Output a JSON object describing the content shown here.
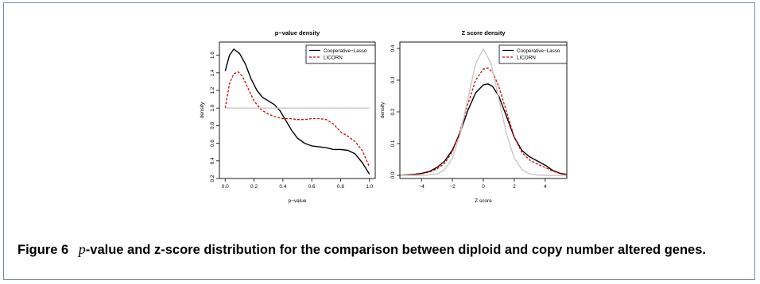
{
  "figure": {
    "caption_label": "Figure 6",
    "caption_symbol": "p",
    "caption_text": "-value and z-score distribution for the comparison between diploid and copy number altered genes."
  },
  "chart_data": [
    {
      "type": "line",
      "title": "p−value density",
      "xlabel": "p−value",
      "ylabel": "density",
      "xlim": [
        -0.04,
        1.04
      ],
      "ylim": [
        0.2,
        1.75
      ],
      "xticks": [
        0.0,
        0.2,
        0.4,
        0.6,
        0.8,
        1.0
      ],
      "xtick_labels": [
        "0.0",
        "0.2",
        "0.4",
        "0.6",
        "0.8",
        "1.0"
      ],
      "yticks": [
        0.2,
        0.4,
        0.6,
        0.8,
        1.0,
        1.2,
        1.4,
        1.6
      ],
      "ytick_labels": [
        "0.2",
        "0.4",
        "0.6",
        "0.8",
        "1.0",
        "1.2",
        "1.4",
        "1.6"
      ],
      "legend_position": "top-right",
      "grid": false,
      "series": [
        {
          "name": "Cooperative−Lasso",
          "color": "#000000",
          "dash": "solid",
          "x": [
            0.0,
            0.03,
            0.06,
            0.1,
            0.14,
            0.18,
            0.22,
            0.26,
            0.3,
            0.34,
            0.38,
            0.42,
            0.46,
            0.5,
            0.55,
            0.6,
            0.65,
            0.7,
            0.75,
            0.8,
            0.85,
            0.9,
            0.95,
            1.0
          ],
          "y": [
            1.42,
            1.6,
            1.67,
            1.62,
            1.5,
            1.33,
            1.2,
            1.12,
            1.08,
            1.04,
            0.97,
            0.86,
            0.75,
            0.66,
            0.6,
            0.57,
            0.56,
            0.55,
            0.53,
            0.53,
            0.52,
            0.48,
            0.38,
            0.25
          ]
        },
        {
          "name": "LICORN",
          "color": "#dd0000",
          "dash": "dashed",
          "x": [
            0.0,
            0.03,
            0.06,
            0.09,
            0.12,
            0.16,
            0.2,
            0.25,
            0.3,
            0.35,
            0.4,
            0.45,
            0.5,
            0.55,
            0.6,
            0.65,
            0.7,
            0.75,
            0.8,
            0.85,
            0.9,
            0.95,
            1.0
          ],
          "y": [
            1.0,
            1.28,
            1.39,
            1.41,
            1.36,
            1.22,
            1.08,
            0.98,
            0.93,
            0.9,
            0.88,
            0.88,
            0.87,
            0.87,
            0.88,
            0.88,
            0.87,
            0.82,
            0.73,
            0.68,
            0.62,
            0.52,
            0.33
          ]
        },
        {
          "name": "",
          "color": "#c8c8c8",
          "dash": "solid",
          "x": [
            0.0,
            1.0
          ],
          "y": [
            1.0,
            1.0
          ]
        }
      ]
    },
    {
      "type": "line",
      "title": "Z score density",
      "xlabel": "Z score",
      "ylabel": "density",
      "xlim": [
        -5.4,
        5.4
      ],
      "ylim": [
        -0.01,
        0.42
      ],
      "xticks": [
        -4,
        -2,
        0,
        2,
        4
      ],
      "xtick_labels": [
        "−4",
        "−2",
        "0",
        "2",
        "4"
      ],
      "yticks": [
        0.0,
        0.1,
        0.2,
        0.3,
        0.4
      ],
      "ytick_labels": [
        "0.0",
        "0.1",
        "0.2",
        "0.3",
        "0.4"
      ],
      "legend_position": "top-right",
      "grid": false,
      "series": [
        {
          "name": "Cooperative−Lasso",
          "color": "#000000",
          "dash": "solid",
          "x": [
            -5.5,
            -4.5,
            -4.0,
            -3.5,
            -3.0,
            -2.5,
            -2.0,
            -1.5,
            -1.0,
            -0.5,
            0.0,
            0.3,
            0.6,
            1.0,
            1.5,
            2.0,
            2.5,
            3.0,
            3.5,
            4.0,
            4.5,
            5.0,
            5.5
          ],
          "y": [
            0.0,
            0.003,
            0.006,
            0.012,
            0.025,
            0.045,
            0.08,
            0.135,
            0.205,
            0.26,
            0.285,
            0.288,
            0.28,
            0.25,
            0.185,
            0.12,
            0.078,
            0.058,
            0.045,
            0.032,
            0.015,
            0.006,
            0.002
          ]
        },
        {
          "name": "LICORN",
          "color": "#dd0000",
          "dash": "dashed",
          "x": [
            -5.5,
            -4.5,
            -4.0,
            -3.5,
            -3.0,
            -2.5,
            -2.0,
            -1.5,
            -1.0,
            -0.5,
            0.0,
            0.3,
            0.6,
            1.0,
            1.5,
            2.0,
            2.5,
            3.0,
            3.5,
            4.0,
            4.5,
            5.0,
            5.5
          ],
          "y": [
            0.0,
            0.002,
            0.005,
            0.01,
            0.02,
            0.038,
            0.075,
            0.14,
            0.225,
            0.3,
            0.335,
            0.338,
            0.325,
            0.28,
            0.2,
            0.12,
            0.072,
            0.048,
            0.035,
            0.025,
            0.013,
            0.005,
            0.001
          ]
        },
        {
          "name": "",
          "color": "#c8c8c8",
          "dash": "solid",
          "x": [
            -5.5,
            -4.5,
            -4.0,
            -3.5,
            -3.0,
            -2.5,
            -2.0,
            -1.5,
            -1.0,
            -0.5,
            0.0,
            0.5,
            1.0,
            1.5,
            2.0,
            2.5,
            3.0,
            3.5,
            4.0,
            4.5,
            5.5
          ],
          "y": [
            0.0,
            0.0,
            0.0001,
            0.0009,
            0.0044,
            0.0175,
            0.054,
            0.1295,
            0.242,
            0.352,
            0.399,
            0.352,
            0.242,
            0.1295,
            0.054,
            0.0175,
            0.0044,
            0.0009,
            0.0001,
            0.0,
            0.0
          ]
        }
      ]
    }
  ]
}
